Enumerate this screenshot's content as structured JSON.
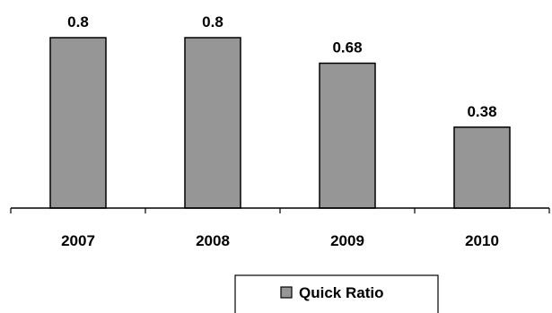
{
  "chart_data": {
    "type": "bar",
    "categories": [
      "2007",
      "2008",
      "2009",
      "2010"
    ],
    "series": [
      {
        "name": "Quick Ratio",
        "values": [
          0.8,
          0.8,
          0.68,
          0.38
        ],
        "labels": [
          "0.8",
          "0.8",
          "0.68",
          "0.38"
        ],
        "color": "#969696"
      }
    ],
    "ylim": [
      0,
      0.8
    ],
    "grid": false,
    "legend_position": "bottom"
  }
}
